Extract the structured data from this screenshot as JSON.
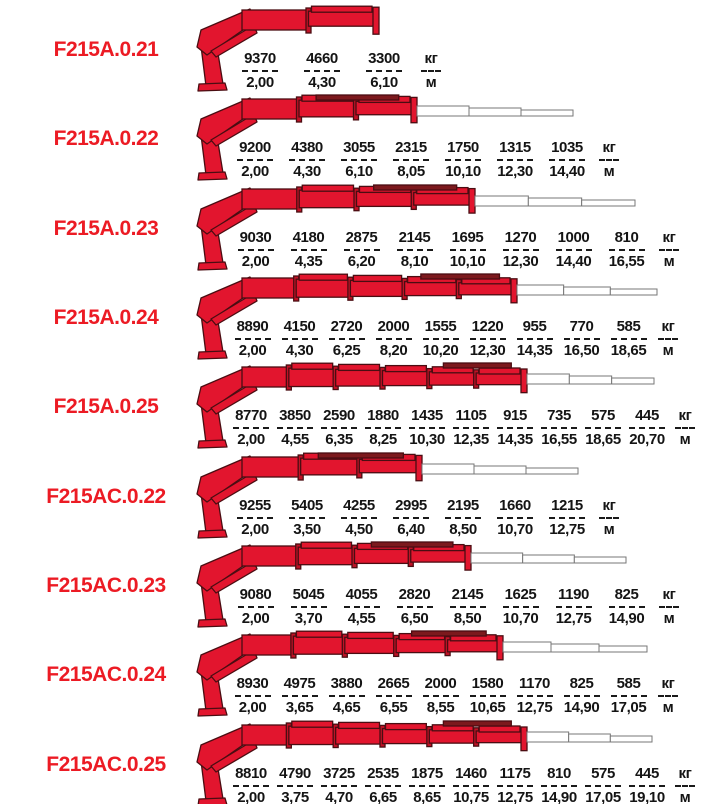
{
  "units": {
    "weight_label": "кг",
    "distance_label": "м"
  },
  "colors": {
    "crane_red": "#e2152e",
    "crane_collar": "#c01226",
    "crane_dark_accent": "#7c191d",
    "crane_outline": "#4a0d12",
    "white_section_fill": "#ffffff",
    "white_section_stroke": "#777777",
    "label_red": "#ec1b24",
    "text_black": "#141414"
  },
  "rows": [
    {
      "model": "F215A.0.21",
      "loads_kg": [
        "9370",
        "4660",
        "3300"
      ],
      "reach_m": [
        "2,00",
        "4,30",
        "6,10"
      ],
      "crane": {
        "red_sections": 2,
        "white_sections": 0,
        "red_width": 185,
        "white_width": 0
      }
    },
    {
      "model": "F215A.0.22",
      "loads_kg": [
        "9200",
        "4380",
        "3055",
        "2315",
        "1750",
        "1315",
        "1035"
      ],
      "reach_m": [
        "2,00",
        "4,30",
        "6,10",
        "8,05",
        "10,10",
        "12,30",
        "14,40"
      ],
      "crane": {
        "red_sections": 3,
        "white_sections": 3,
        "red_width": 223,
        "white_width": 156
      }
    },
    {
      "model": "F215A.0.23",
      "loads_kg": [
        "9030",
        "4180",
        "2875",
        "2145",
        "1695",
        "1270",
        "1000",
        "810"
      ],
      "reach_m": [
        "2,00",
        "4,35",
        "6,20",
        "8,10",
        "10,10",
        "12,30",
        "14,40",
        "16,55"
      ],
      "crane": {
        "red_sections": 4,
        "white_sections": 3,
        "red_width": 281,
        "white_width": 160
      }
    },
    {
      "model": "F215A.0.24",
      "loads_kg": [
        "8890",
        "4150",
        "2720",
        "2000",
        "1555",
        "1220",
        "955",
        "770",
        "585"
      ],
      "reach_m": [
        "2,00",
        "4,30",
        "6,25",
        "8,20",
        "10,20",
        "12,30",
        "14,35",
        "16,50",
        "18,65"
      ],
      "crane": {
        "red_sections": 5,
        "white_sections": 3,
        "red_width": 323,
        "white_width": 140
      }
    },
    {
      "model": "F215A.0.25",
      "loads_kg": [
        "8770",
        "3850",
        "2590",
        "1880",
        "1435",
        "1105",
        "915",
        "735",
        "575",
        "445"
      ],
      "reach_m": [
        "2,00",
        "4,55",
        "6,35",
        "8,25",
        "10,30",
        "12,35",
        "14,35",
        "16,55",
        "18,65",
        "20,70"
      ],
      "crane": {
        "red_sections": 6,
        "white_sections": 3,
        "red_width": 333,
        "white_width": 127
      }
    },
    {
      "model": "F215AC.0.22",
      "loads_kg": [
        "9255",
        "5405",
        "4255",
        "2995",
        "2195",
        "1660",
        "1215"
      ],
      "reach_m": [
        "2,00",
        "3,50",
        "4,50",
        "6,40",
        "8,50",
        "10,70",
        "12,75"
      ],
      "crane": {
        "red_sections": 3,
        "white_sections": 3,
        "red_width": 228,
        "white_width": 156
      }
    },
    {
      "model": "F215AC.0.23",
      "loads_kg": [
        "9080",
        "5045",
        "4055",
        "2820",
        "2145",
        "1625",
        "1190",
        "825"
      ],
      "reach_m": [
        "2,00",
        "3,70",
        "4,55",
        "6,50",
        "8,50",
        "10,70",
        "12,75",
        "14,90"
      ],
      "crane": {
        "red_sections": 4,
        "white_sections": 3,
        "red_width": 277,
        "white_width": 155
      }
    },
    {
      "model": "F215AC.0.24",
      "loads_kg": [
        "8930",
        "4975",
        "3880",
        "2665",
        "2000",
        "1580",
        "1170",
        "825",
        "585"
      ],
      "reach_m": [
        "2,00",
        "3,65",
        "4,65",
        "6,55",
        "8,55",
        "10,65",
        "12,75",
        "14,90",
        "17,05"
      ],
      "crane": {
        "red_sections": 5,
        "white_sections": 3,
        "red_width": 309,
        "white_width": 144
      }
    },
    {
      "model": "F215AC.0.25",
      "loads_kg": [
        "8810",
        "4790",
        "3725",
        "2535",
        "1875",
        "1460",
        "1175",
        "810",
        "575",
        "445"
      ],
      "reach_m": [
        "2,00",
        "3,75",
        "4,70",
        "6,65",
        "8,65",
        "10,75",
        "12,75",
        "14,90",
        "17,05",
        "19,10"
      ],
      "crane": {
        "red_sections": 6,
        "white_sections": 3,
        "red_width": 333,
        "white_width": 125
      }
    }
  ]
}
